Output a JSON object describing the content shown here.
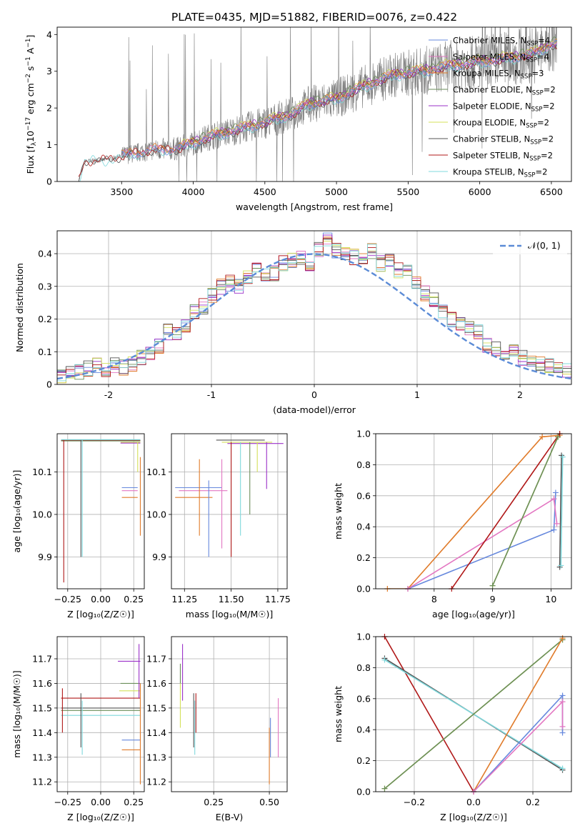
{
  "title": "PLATE=0435, MJD=51882, FIBERID=0076, z=0.422",
  "colors": {
    "chabrier_miles": "#6688dd",
    "salpeter_miles": "#e377c2",
    "kroupa_miles": "#e07b2a",
    "chabrier_elodie": "#6b8e5a",
    "salpeter_elodie": "#9b30c8",
    "kroupa_elodie": "#d4e05a",
    "chabrier_stelib": "#555555",
    "salpeter_stelib": "#b01818",
    "kroupa_stelib": "#7fd8dc",
    "data": "#7a7a7a",
    "gaussian": "#5b8bd6"
  },
  "chart_data": [
    {
      "id": "spectrum",
      "type": "line",
      "xlabel": "wavelength [Angstrom, rest frame]",
      "ylabel_parts": [
        "Flux [f",
        "λ",
        "10",
        "−17",
        " erg cm",
        "−2",
        " s",
        "−1",
        " A",
        "−1",
        "]"
      ],
      "xlim": [
        3050,
        6640
      ],
      "ylim": [
        0,
        4.2
      ],
      "xticks": [
        3500,
        4000,
        4500,
        5000,
        5500,
        6000,
        6500
      ],
      "yticks": [
        0,
        1,
        2,
        3,
        4
      ],
      "legend": [
        {
          "label": "Chabrier MILES, N",
          "sub": "SSP",
          "suffix": "=4",
          "color_key": "chabrier_miles"
        },
        {
          "label": "Salpeter MILES, N",
          "sub": "SSP",
          "suffix": "=4",
          "color_key": "salpeter_miles"
        },
        {
          "label": "Kroupa MILES, N",
          "sub": "SSP",
          "suffix": "=3",
          "color_key": "kroupa_miles"
        },
        {
          "label": "Chabrier ELODIE, N",
          "sub": "SSP",
          "suffix": "=2",
          "color_key": "chabrier_elodie"
        },
        {
          "label": "Salpeter ELODIE, N",
          "sub": "SSP",
          "suffix": "=2",
          "color_key": "salpeter_elodie"
        },
        {
          "label": "Kroupa ELODIE, N",
          "sub": "SSP",
          "suffix": "=2",
          "color_key": "kroupa_elodie"
        },
        {
          "label": "Chabrier STELIB, N",
          "sub": "SSP",
          "suffix": "=2",
          "color_key": "chabrier_stelib"
        },
        {
          "label": "Salpeter STELIB, N",
          "sub": "SSP",
          "suffix": "=2",
          "color_key": "salpeter_stelib"
        },
        {
          "label": "Kroupa STELIB, N",
          "sub": "SSP",
          "suffix": "=2",
          "color_key": "kroupa_stelib"
        }
      ],
      "continuum": [
        [
          3200,
          0
        ],
        [
          3240,
          0.55
        ],
        [
          3400,
          0.6
        ],
        [
          3500,
          0.7
        ],
        [
          3700,
          0.85
        ],
        [
          3900,
          0.9
        ],
        [
          4000,
          1.05
        ],
        [
          4100,
          1.2
        ],
        [
          4300,
          1.4
        ],
        [
          4500,
          1.6
        ],
        [
          4700,
          1.85
        ],
        [
          4800,
          2.1
        ],
        [
          5000,
          2.25
        ],
        [
          5200,
          2.6
        ],
        [
          5400,
          2.9
        ],
        [
          5600,
          3.0
        ],
        [
          5800,
          3.15
        ],
        [
          6000,
          3.25
        ],
        [
          6200,
          3.35
        ],
        [
          6400,
          3.5
        ],
        [
          6500,
          3.75
        ]
      ],
      "model_start": {
        "miles": 3500,
        "elodie": 3900,
        "stelib": 3200
      }
    },
    {
      "id": "residuals",
      "type": "histogram",
      "xlabel": "(data-model)/error",
      "ylabel": "Normed distribution",
      "xlim": [
        -2.5,
        2.5
      ],
      "ylim": [
        0,
        0.47
      ],
      "xticks": [
        -2,
        -1,
        0,
        1,
        2
      ],
      "yticks": [
        0.0,
        0.1,
        0.2,
        0.3,
        0.4
      ],
      "legend_label": "𝒩(0, 1)",
      "hist_mean": [
        0.02,
        0.03,
        0.04,
        0.05,
        0.06,
        0.04,
        0.06,
        0.05,
        0.06,
        0.08,
        0.1,
        0.12,
        0.16,
        0.16,
        0.18,
        0.22,
        0.24,
        0.27,
        0.3,
        0.31,
        0.3,
        0.33,
        0.35,
        0.33,
        0.34,
        0.37,
        0.38,
        0.39,
        0.37,
        0.41,
        0.44,
        0.41,
        0.4,
        0.39,
        0.38,
        0.41,
        0.37,
        0.38,
        0.35,
        0.35,
        0.31,
        0.28,
        0.26,
        0.22,
        0.2,
        0.19,
        0.17,
        0.16,
        0.12,
        0.11,
        0.09,
        0.1,
        0.08,
        0.07,
        0.06,
        0.06,
        0.05,
        0.04
      ]
    },
    {
      "id": "age_vs_z",
      "type": "scatter",
      "xlabel": "Z [log₁₀(Z/Z☉)]",
      "ylabel": "age  [log₁₀(age/yr)]",
      "xlim": [
        -0.33,
        0.33
      ],
      "ylim": [
        9.825,
        10.19
      ],
      "xticks": [
        "−0.25",
        "0.00",
        "0.25"
      ],
      "xtick_values": [
        -0.25,
        0,
        0.25
      ],
      "yticks": [
        "9.9",
        "10.0",
        "10.1"
      ],
      "ytick_values": [
        9.9,
        10.0,
        10.1
      ],
      "hlines": [
        [
          -0.3,
          0.3,
          10.175,
          "chabrier_stelib"
        ],
        [
          -0.3,
          0.3,
          10.174,
          "salpeter_stelib"
        ],
        [
          -0.3,
          0.3,
          10.176,
          "kroupa_stelib"
        ],
        [
          -0.3,
          0.3,
          10.173,
          "chabrier_elodie"
        ],
        [
          0.15,
          0.3,
          10.17,
          "kroupa_elodie"
        ],
        [
          0.15,
          0.3,
          10.168,
          "salpeter_elodie"
        ],
        [
          0.16,
          0.28,
          10.063,
          "chabrier_miles"
        ],
        [
          0.16,
          0.28,
          10.056,
          "salpeter_miles"
        ],
        [
          0.16,
          0.28,
          10.04,
          "kroupa_miles"
        ]
      ],
      "vlines": [
        [
          -0.28,
          9.84,
          10.175,
          "salpeter_stelib"
        ],
        [
          -0.15,
          9.9,
          10.175,
          "chabrier_stelib"
        ],
        [
          -0.14,
          9.9,
          10.175,
          "kroupa_stelib"
        ],
        [
          0.3,
          9.95,
          10.135,
          "kroupa_miles"
        ],
        [
          0.28,
          10.1,
          10.17,
          "kroupa_elodie"
        ]
      ]
    },
    {
      "id": "age_vs_mass",
      "type": "scatter",
      "xlabel": "mass [log₁₀(M/M☉)]",
      "xlim": [
        11.18,
        11.8
      ],
      "ylim": [
        9.825,
        10.19
      ],
      "xticks": [
        "11.25",
        "11.50",
        "11.75"
      ],
      "xtick_values": [
        11.25,
        11.5,
        11.75
      ],
      "yticks": [
        "9.9",
        "10.0",
        "10.1"
      ],
      "ytick_values": [
        9.9,
        10.0,
        10.1
      ],
      "hlines": [
        [
          11.42,
          11.68,
          10.175,
          "chabrier_stelib"
        ],
        [
          11.45,
          11.72,
          10.17,
          "kroupa_elodie"
        ],
        [
          11.48,
          11.78,
          10.167,
          "salpeter_elodie"
        ],
        [
          11.2,
          11.45,
          10.063,
          "chabrier_miles"
        ],
        [
          11.22,
          11.48,
          10.056,
          "salpeter_miles"
        ],
        [
          11.2,
          11.4,
          10.04,
          "kroupa_miles"
        ]
      ],
      "vlines": [
        [
          11.33,
          9.95,
          10.13,
          "kroupa_miles"
        ],
        [
          11.38,
          9.9,
          10.08,
          "chabrier_miles"
        ],
        [
          11.45,
          9.92,
          10.13,
          "salpeter_miles"
        ],
        [
          11.5,
          9.9,
          10.17,
          "salpeter_stelib"
        ],
        [
          11.55,
          9.95,
          10.17,
          "kroupa_stelib"
        ],
        [
          11.6,
          10.0,
          10.17,
          "chabrier_elodie"
        ],
        [
          11.69,
          10.06,
          10.17,
          "salpeter_elodie"
        ],
        [
          11.64,
          10.1,
          10.17,
          "kroupa_elodie"
        ]
      ]
    },
    {
      "id": "weight_vs_age",
      "type": "line",
      "xlabel": "age  [log₁₀(age/yr)]",
      "ylabel": "mass weight",
      "xlim": [
        7.0,
        10.35
      ],
      "ylim": [
        0,
        1.0
      ],
      "xticks": [
        "8",
        "9",
        "10"
      ],
      "xtick_values": [
        8,
        9,
        10
      ],
      "yticks": [
        "0.0",
        "0.2",
        "0.4",
        "0.6",
        "0.8",
        "1.0"
      ],
      "ytick_values": [
        0,
        0.2,
        0.4,
        0.6,
        0.8,
        1.0
      ],
      "series": [
        {
          "color_key": "kroupa_miles",
          "points": [
            [
              7.2,
              0
            ],
            [
              7.55,
              0
            ],
            [
              9.85,
              0.98
            ],
            [
              10.15,
              0.99
            ]
          ]
        },
        {
          "color_key": "chabrier_miles",
          "points": [
            [
              7.55,
              0
            ],
            [
              10.05,
              0.38
            ],
            [
              10.08,
              0.62
            ]
          ]
        },
        {
          "color_key": "salpeter_miles",
          "points": [
            [
              7.55,
              0
            ],
            [
              10.05,
              0.58
            ],
            [
              10.1,
              0.42
            ]
          ]
        },
        {
          "color_key": "salpeter_stelib",
          "points": [
            [
              8.3,
              0
            ],
            [
              10.15,
              1.0
            ]
          ]
        },
        {
          "color_key": "kroupa_elodie",
          "points": [
            [
              9.0,
              0.02
            ],
            [
              10.12,
              0.98
            ]
          ]
        },
        {
          "color_key": "chabrier_elodie",
          "points": [
            [
              9.0,
              0.02
            ],
            [
              10.12,
              0.98
            ]
          ]
        },
        {
          "color_key": "chabrier_stelib",
          "points": [
            [
              10.15,
              0.14
            ],
            [
              10.18,
              0.86
            ]
          ]
        },
        {
          "color_key": "kroupa_stelib",
          "points": [
            [
              10.17,
              0.15
            ],
            [
              10.2,
              0.85
            ]
          ]
        }
      ]
    },
    {
      "id": "mass_vs_z",
      "type": "scatter",
      "xlabel": "Z [log₁₀(Z/Z☉)]",
      "ylabel": "mass [log₁₀(M/M☉)]",
      "xlim": [
        -0.33,
        0.33
      ],
      "ylim": [
        11.16,
        11.79
      ],
      "xticks": [
        "−0.25",
        "0.00",
        "0.25"
      ],
      "xtick_values": [
        -0.25,
        0,
        0.25
      ],
      "yticks": [
        "11.2",
        "11.3",
        "11.4",
        "11.5",
        "11.6",
        "11.7"
      ],
      "ytick_values": [
        11.2,
        11.3,
        11.4,
        11.5,
        11.6,
        11.7
      ],
      "hlines": [
        [
          -0.3,
          0.3,
          11.54,
          "salpeter_stelib"
        ],
        [
          -0.3,
          0.3,
          11.5,
          "chabrier_stelib"
        ],
        [
          -0.3,
          0.3,
          11.47,
          "kroupa_stelib"
        ],
        [
          -0.3,
          0.3,
          11.49,
          "chabrier_elodie"
        ],
        [
          0.13,
          0.3,
          11.69,
          "salpeter_elodie"
        ],
        [
          0.15,
          0.3,
          11.6,
          "chabrier_elodie"
        ],
        [
          0.14,
          0.3,
          11.57,
          "kroupa_elodie"
        ],
        [
          0.16,
          0.3,
          11.37,
          "chabrier_miles"
        ],
        [
          0.16,
          0.3,
          11.33,
          "kroupa_miles"
        ]
      ],
      "vlines": [
        [
          -0.29,
          11.4,
          11.58,
          "salpeter_stelib"
        ],
        [
          -0.15,
          11.34,
          11.56,
          "chabrier_stelib"
        ],
        [
          -0.14,
          11.31,
          11.53,
          "kroupa_stelib"
        ],
        [
          0.29,
          11.54,
          11.76,
          "salpeter_elodie"
        ],
        [
          0.3,
          11.19,
          11.6,
          "kroupa_miles"
        ]
      ]
    },
    {
      "id": "mass_vs_ebv",
      "type": "scatter",
      "xlabel": "E(B-V)",
      "xlim": [
        0.06,
        0.58
      ],
      "ylim": [
        11.16,
        11.79
      ],
      "xticks": [
        "0.25",
        "0.50"
      ],
      "xtick_values": [
        0.25,
        0.5
      ],
      "yticks": [
        "11.2",
        "11.3",
        "11.4",
        "11.5",
        "11.6",
        "11.7"
      ],
      "ytick_values": [
        11.2,
        11.3,
        11.4,
        11.5,
        11.6,
        11.7
      ],
      "vlines": [
        [
          0.1,
          11.42,
          11.6,
          "kroupa_elodie"
        ],
        [
          0.11,
          11.53,
          11.76,
          "salpeter_elodie"
        ],
        [
          0.1,
          11.6,
          11.68,
          "chabrier_elodie"
        ],
        [
          0.16,
          11.34,
          11.56,
          "chabrier_stelib"
        ],
        [
          0.17,
          11.4,
          11.56,
          "salpeter_stelib"
        ],
        [
          0.165,
          11.31,
          11.53,
          "kroupa_stelib"
        ],
        [
          0.5,
          11.19,
          11.42,
          "kroupa_miles"
        ],
        [
          0.505,
          11.3,
          11.46,
          "chabrier_miles"
        ],
        [
          0.54,
          11.3,
          11.54,
          "salpeter_miles"
        ]
      ]
    },
    {
      "id": "weight_vs_z",
      "type": "line",
      "xlabel": "Z [log₁₀(Z/Z☉)]",
      "ylabel": "mass weight",
      "xlim": [
        -0.33,
        0.33
      ],
      "ylim": [
        0,
        1.0
      ],
      "xticks": [
        "−0.2",
        "0.0",
        "0.2"
      ],
      "xtick_values": [
        -0.2,
        0,
        0.2
      ],
      "yticks": [
        "0.0",
        "0.2",
        "0.4",
        "0.6",
        "0.8",
        "1.0"
      ],
      "ytick_values": [
        0,
        0.2,
        0.4,
        0.6,
        0.8,
        1.0
      ],
      "series": [
        {
          "color_key": "salpeter_stelib",
          "points": [
            [
              -0.3,
              1.0
            ],
            [
              0.0,
              0.0
            ]
          ]
        },
        {
          "color_key": "chabrier_stelib",
          "points": [
            [
              -0.3,
              0.86
            ],
            [
              0.3,
              0.14
            ]
          ]
        },
        {
          "color_key": "kroupa_stelib",
          "points": [
            [
              -0.3,
              0.85
            ],
            [
              0.3,
              0.15
            ]
          ]
        },
        {
          "color_key": "kroupa_elodie",
          "points": [
            [
              -0.3,
              0.02
            ],
            [
              0.3,
              0.98
            ]
          ]
        },
        {
          "color_key": "chabrier_elodie",
          "points": [
            [
              -0.3,
              0.02
            ],
            [
              0.3,
              0.98
            ]
          ]
        },
        {
          "color_key": "kroupa_miles",
          "points": [
            [
              0.0,
              0.0
            ],
            [
              0.3,
              0.99
            ]
          ]
        },
        {
          "color_key": "chabrier_miles",
          "points": [
            [
              0.0,
              0.0
            ],
            [
              0.3,
              0.62
            ],
            [
              0.3,
              0.38
            ]
          ]
        },
        {
          "color_key": "salpeter_miles",
          "points": [
            [
              0.0,
              0.0
            ],
            [
              0.3,
              0.58
            ],
            [
              0.3,
              0.42
            ]
          ]
        }
      ]
    }
  ]
}
